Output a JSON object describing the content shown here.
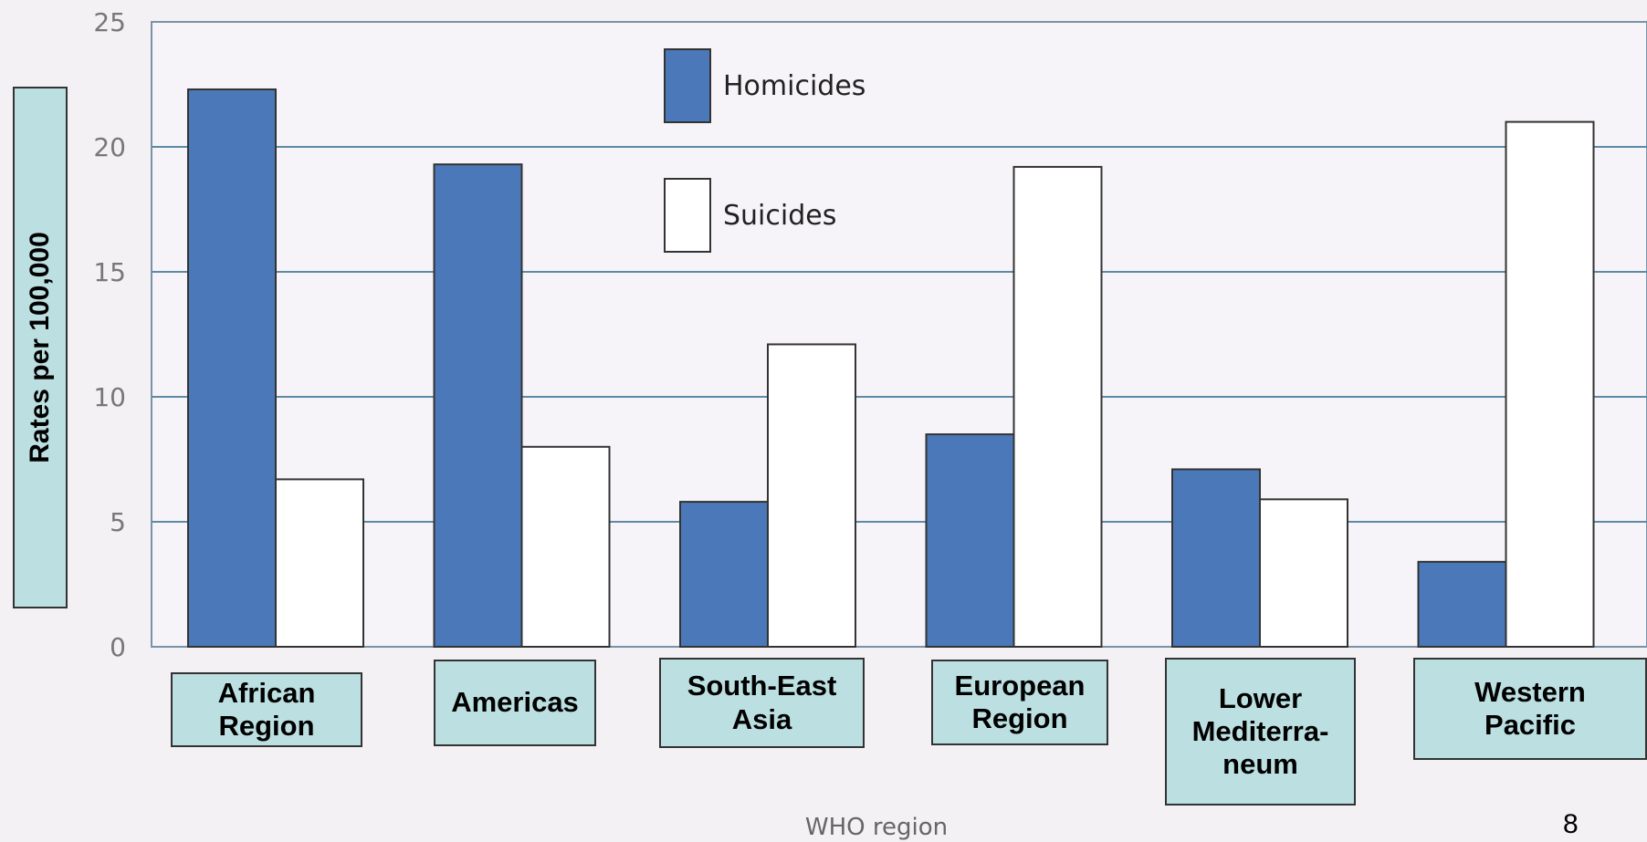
{
  "chart_data": {
    "type": "bar",
    "title": "",
    "xlabel": "WHO region",
    "ylabel": "Rates per 100,000",
    "ylim": [
      0,
      25
    ],
    "yticks": [
      "0",
      "5",
      "10",
      "15",
      "20",
      "25"
    ],
    "grid": true,
    "legend_position": "top-center",
    "categories": [
      "African Region",
      "Americas",
      "South-East Asia",
      "European Region",
      "Lower Mediterra-neum",
      "Western Pacific"
    ],
    "series": [
      {
        "name": "Homicides",
        "color": "#4a78b8",
        "values": [
          22.3,
          19.3,
          5.8,
          8.5,
          7.1,
          3.4
        ]
      },
      {
        "name": "Suicides",
        "color": "#ffffff",
        "values": [
          6.7,
          8.0,
          12.1,
          19.2,
          5.9,
          21.0
        ]
      }
    ]
  },
  "category_boxes": [
    "African\nRegion",
    "Americas",
    "South-East\nAsia",
    "European\nRegion",
    "Lower\nMediterra-\nneum",
    "Western\nPacific"
  ],
  "page_number": "8"
}
